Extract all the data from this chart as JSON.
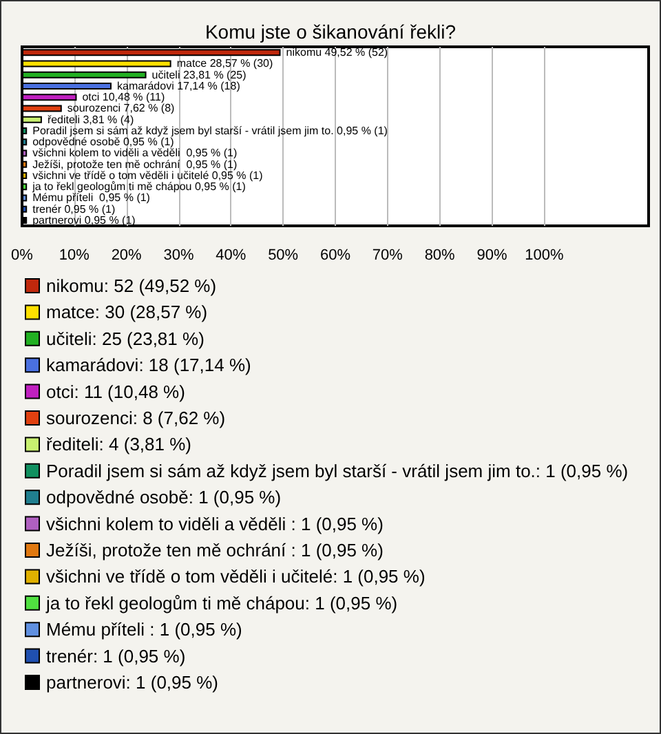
{
  "chart_data": {
    "type": "bar",
    "orientation": "horizontal",
    "title": "Komu jste o šikanování řekli?",
    "categories": [
      null,
      null,
      null,
      null,
      null,
      null,
      null,
      null,
      null,
      null,
      null,
      null,
      null,
      null,
      null,
      null
    ],
    "series": [
      {
        "name": "nikomu: 52 (49,52 %)",
        "color": "#c0280c",
        "values": [
          49.52,
          null,
          null,
          null,
          null,
          null,
          null,
          null,
          null,
          null,
          null,
          null,
          null,
          null,
          null,
          null
        ],
        "value_labels": [
          "nikomu 49,52 % (52)",
          null,
          null,
          null,
          null,
          null,
          null,
          null,
          null,
          null,
          null,
          null,
          null,
          null,
          null,
          null
        ]
      },
      {
        "name": "matce: 30 (28,57 %)",
        "color": "#ffe000",
        "values": [
          null,
          28.57,
          null,
          null,
          null,
          null,
          null,
          null,
          null,
          null,
          null,
          null,
          null,
          null,
          null,
          null
        ],
        "value_labels": [
          null,
          "matce 28,57 % (30)",
          null,
          null,
          null,
          null,
          null,
          null,
          null,
          null,
          null,
          null,
          null,
          null,
          null,
          null
        ]
      },
      {
        "name": "učiteli: 25 (23,81 %)",
        "color": "#22b022",
        "values": [
          null,
          null,
          23.81,
          null,
          null,
          null,
          null,
          null,
          null,
          null,
          null,
          null,
          null,
          null,
          null,
          null
        ],
        "value_labels": [
          null,
          null,
          "učiteli 23,81 % (25)",
          null,
          null,
          null,
          null,
          null,
          null,
          null,
          null,
          null,
          null,
          null,
          null,
          null
        ]
      },
      {
        "name": "kamarádovi: 18 (17,14 %)",
        "color": "#4a70e0",
        "values": [
          null,
          null,
          null,
          17.14,
          null,
          null,
          null,
          null,
          null,
          null,
          null,
          null,
          null,
          null,
          null,
          null
        ],
        "value_labels": [
          null,
          null,
          null,
          "kamarádovi 17,14 % (18)",
          null,
          null,
          null,
          null,
          null,
          null,
          null,
          null,
          null,
          null,
          null,
          null
        ]
      },
      {
        "name": "otci: 11 (10,48 %)",
        "color": "#c020c0",
        "values": [
          null,
          null,
          null,
          null,
          10.48,
          null,
          null,
          null,
          null,
          null,
          null,
          null,
          null,
          null,
          null,
          null
        ],
        "value_labels": [
          null,
          null,
          null,
          null,
          "otci 10,48 % (11)",
          null,
          null,
          null,
          null,
          null,
          null,
          null,
          null,
          null,
          null,
          null
        ]
      },
      {
        "name": "sourozenci: 8 (7,62 %)",
        "color": "#e04010",
        "values": [
          null,
          null,
          null,
          null,
          null,
          7.62,
          null,
          null,
          null,
          null,
          null,
          null,
          null,
          null,
          null,
          null
        ],
        "value_labels": [
          null,
          null,
          null,
          null,
          null,
          "sourozenci 7,62 % (8)",
          null,
          null,
          null,
          null,
          null,
          null,
          null,
          null,
          null,
          null
        ]
      },
      {
        "name": "řediteli: 4 (3,81 %)",
        "color": "#c8f070",
        "values": [
          null,
          null,
          null,
          null,
          null,
          null,
          3.81,
          null,
          null,
          null,
          null,
          null,
          null,
          null,
          null,
          null
        ],
        "value_labels": [
          null,
          null,
          null,
          null,
          null,
          null,
          "řediteli 3,81 % (4)",
          null,
          null,
          null,
          null,
          null,
          null,
          null,
          null,
          null
        ]
      },
      {
        "name": "Poradil jsem si sám až když jsem byl starší - vrátil jsem jim to.: 1 (0,95 %)",
        "color": "#109060",
        "values": [
          null,
          null,
          null,
          null,
          null,
          null,
          null,
          0.95,
          null,
          null,
          null,
          null,
          null,
          null,
          null,
          null
        ],
        "value_labels": [
          null,
          null,
          null,
          null,
          null,
          null,
          null,
          "Poradil jsem si sám až když jsem byl starší - vrátil jsem jim to. 0,95 % (1)",
          null,
          null,
          null,
          null,
          null,
          null,
          null,
          null
        ]
      },
      {
        "name": "odpovědné osobě: 1 (0,95 %)",
        "color": "#207f8f",
        "values": [
          null,
          null,
          null,
          null,
          null,
          null,
          null,
          null,
          0.95,
          null,
          null,
          null,
          null,
          null,
          null,
          null
        ],
        "value_labels": [
          null,
          null,
          null,
          null,
          null,
          null,
          null,
          null,
          "odpovědné osobě 0,95 % (1)",
          null,
          null,
          null,
          null,
          null,
          null,
          null
        ]
      },
      {
        "name": "všichni kolem to viděli a věděli : 1 (0,95 %)",
        "color": "#b060c0",
        "values": [
          null,
          null,
          null,
          null,
          null,
          null,
          null,
          null,
          null,
          0.95,
          null,
          null,
          null,
          null,
          null,
          null
        ],
        "value_labels": [
          null,
          null,
          null,
          null,
          null,
          null,
          null,
          null,
          null,
          "všichni kolem to viděli a věděli  0,95 % (1)",
          null,
          null,
          null,
          null,
          null,
          null
        ]
      },
      {
        "name": "Ježíši, protože ten mě ochrání : 1 (0,95 %)",
        "color": "#e07810",
        "values": [
          null,
          null,
          null,
          null,
          null,
          null,
          null,
          null,
          null,
          null,
          0.95,
          null,
          null,
          null,
          null,
          null
        ],
        "value_labels": [
          null,
          null,
          null,
          null,
          null,
          null,
          null,
          null,
          null,
          null,
          "Ježíši, protože ten mě ochrání  0,95 % (1)",
          null,
          null,
          null,
          null,
          null
        ]
      },
      {
        "name": "všichni ve třídě o tom věděli i učitelé: 1 (0,95 %)",
        "color": "#e0b000",
        "values": [
          null,
          null,
          null,
          null,
          null,
          null,
          null,
          null,
          null,
          null,
          null,
          0.95,
          null,
          null,
          null,
          null
        ],
        "value_labels": [
          null,
          null,
          null,
          null,
          null,
          null,
          null,
          null,
          null,
          null,
          null,
          "všichni ve třídě o tom věděli i učitelé 0,95 % (1)",
          null,
          null,
          null,
          null
        ]
      },
      {
        "name": "ja to řekl geologům ti mě chápou: 1 (0,95 %)",
        "color": "#50e040",
        "values": [
          null,
          null,
          null,
          null,
          null,
          null,
          null,
          null,
          null,
          null,
          null,
          null,
          0.95,
          null,
          null,
          null
        ],
        "value_labels": [
          null,
          null,
          null,
          null,
          null,
          null,
          null,
          null,
          null,
          null,
          null,
          null,
          "ja to řekl geologům ti mě chápou 0,95 % (1)",
          null,
          null,
          null
        ]
      },
      {
        "name": "Mému příteli : 1 (0,95 %)",
        "color": "#6090e0",
        "values": [
          null,
          null,
          null,
          null,
          null,
          null,
          null,
          null,
          null,
          null,
          null,
          null,
          null,
          0.95,
          null,
          null
        ],
        "value_labels": [
          null,
          null,
          null,
          null,
          null,
          null,
          null,
          null,
          null,
          null,
          null,
          null,
          null,
          "Mému příteli  0,95 % (1)",
          null,
          null
        ]
      },
      {
        "name": "trenér: 1 (0,95 %)",
        "color": "#2050b0",
        "values": [
          null,
          null,
          null,
          null,
          null,
          null,
          null,
          null,
          null,
          null,
          null,
          null,
          null,
          null,
          0.95,
          null
        ],
        "value_labels": [
          null,
          null,
          null,
          null,
          null,
          null,
          null,
          null,
          null,
          null,
          null,
          null,
          null,
          null,
          "trenér 0,95 % (1)",
          null
        ]
      },
      {
        "name": "partnerovi: 1 (0,95 %)",
        "color": "#000000",
        "values": [
          null,
          null,
          null,
          null,
          null,
          null,
          null,
          null,
          null,
          null,
          null,
          null,
          null,
          null,
          null,
          0.95
        ],
        "value_labels": [
          null,
          null,
          null,
          null,
          null,
          null,
          null,
          null,
          null,
          null,
          null,
          null,
          null,
          null,
          null,
          "partnerovi 0,95 % (1)"
        ]
      }
    ],
    "xlim": [
      0,
      120
    ],
    "xticks": [
      {
        "value": 0,
        "label": "0%"
      },
      {
        "value": 10,
        "label": "10%"
      },
      {
        "value": 20,
        "label": "20%"
      },
      {
        "value": 30,
        "label": "30%"
      },
      {
        "value": 40,
        "label": "40%"
      },
      {
        "value": 50,
        "label": "50%"
      },
      {
        "value": 60,
        "label": "60%"
      },
      {
        "value": 70,
        "label": "70%"
      },
      {
        "value": 80,
        "label": "80%"
      },
      {
        "value": 90,
        "label": "90%"
      },
      {
        "value": 100,
        "label": "100%"
      }
    ],
    "grid": "x",
    "legend": "bottom"
  }
}
